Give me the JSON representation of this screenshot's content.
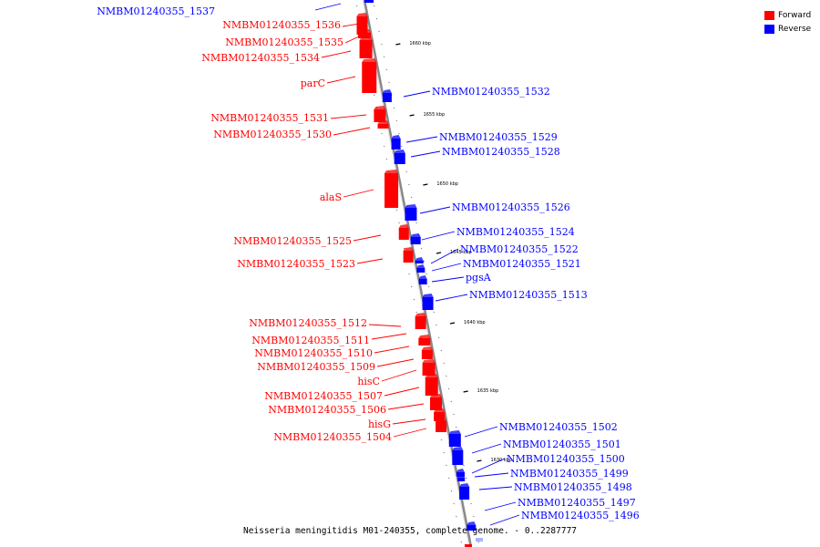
{
  "legend": {
    "forward_label": "Forward",
    "reverse_label": "Reverse",
    "forward_color": "#ff0000",
    "reverse_color": "#0000ff"
  },
  "caption": "Neisseria meningitidis M01-240355, complete genome. - 0..2287777",
  "ticks": [
    "1660 kbp",
    "1655 kbp",
    "1650 kbp",
    "1645 kbp",
    "1640 kbp",
    "1635 kbp",
    "1630 kbp"
  ],
  "forward_genes": [
    "NMBM01240355_1536",
    "NMBM01240355_1535",
    "NMBM01240355_1534",
    "parC",
    "NMBM01240355_1531",
    "NMBM01240355_1530",
    "alaS",
    "NMBM01240355_1525",
    "NMBM01240355_1523",
    "NMBM01240355_1512",
    "NMBM01240355_1511",
    "NMBM01240355_1510",
    "NMBM01240355_1509",
    "hisC",
    "NMBM01240355_1507",
    "NMBM01240355_1506",
    "hisG",
    "NMBM01240355_1504"
  ],
  "reverse_genes": [
    "NMBM01240355_1537",
    "NMBM01240355_1532",
    "NMBM01240355_1529",
    "NMBM01240355_1528",
    "NMBM01240355_1526",
    "NMBM01240355_1524",
    "NMBM01240355_1522",
    "NMBM01240355_1521",
    "pgsA",
    "NMBM01240355_1513",
    "NMBM01240355_1502",
    "NMBM01240355_1501",
    "NMBM01240355_1500",
    "NMBM01240355_1499",
    "NMBM01240355_1498",
    "NMBM01240355_1497",
    "NMBM01240355_1496"
  ]
}
